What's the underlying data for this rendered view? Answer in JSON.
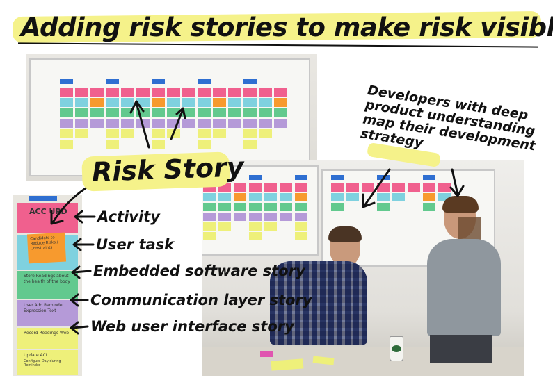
{
  "title": "Adding risk stories to make risk visible",
  "annotations": {
    "risk_story": "Risk Story",
    "developers_note": [
      "Developers with deep",
      "product understanding",
      "map their development",
      "strategy"
    ],
    "layers": {
      "activity": "Activity",
      "user_task": "User task",
      "embedded": "Embedded software story",
      "communication": "Communication layer story",
      "web_ui": "Web user interface story"
    }
  },
  "crop_notes": {
    "activity": "ACC UPD",
    "risk_card": "Candidate to Reduce Risks / Constraints",
    "embedded": "Store Readings about the health of the body",
    "communication": "User Add Reminder Expression Text",
    "web_ui": "Record Readings Web",
    "bottom_1": "Update ACL",
    "bottom_2": "Configure Day-during Reminder"
  },
  "colors": {
    "highlight": "#f5f28a",
    "tape": "#2f6fd1",
    "pink": "#f0608e",
    "orange": "#f79a2e",
    "cyan": "#7fd1df",
    "green": "#62c98e",
    "purple": "#b59ad8",
    "yellow": "#eef07a"
  }
}
